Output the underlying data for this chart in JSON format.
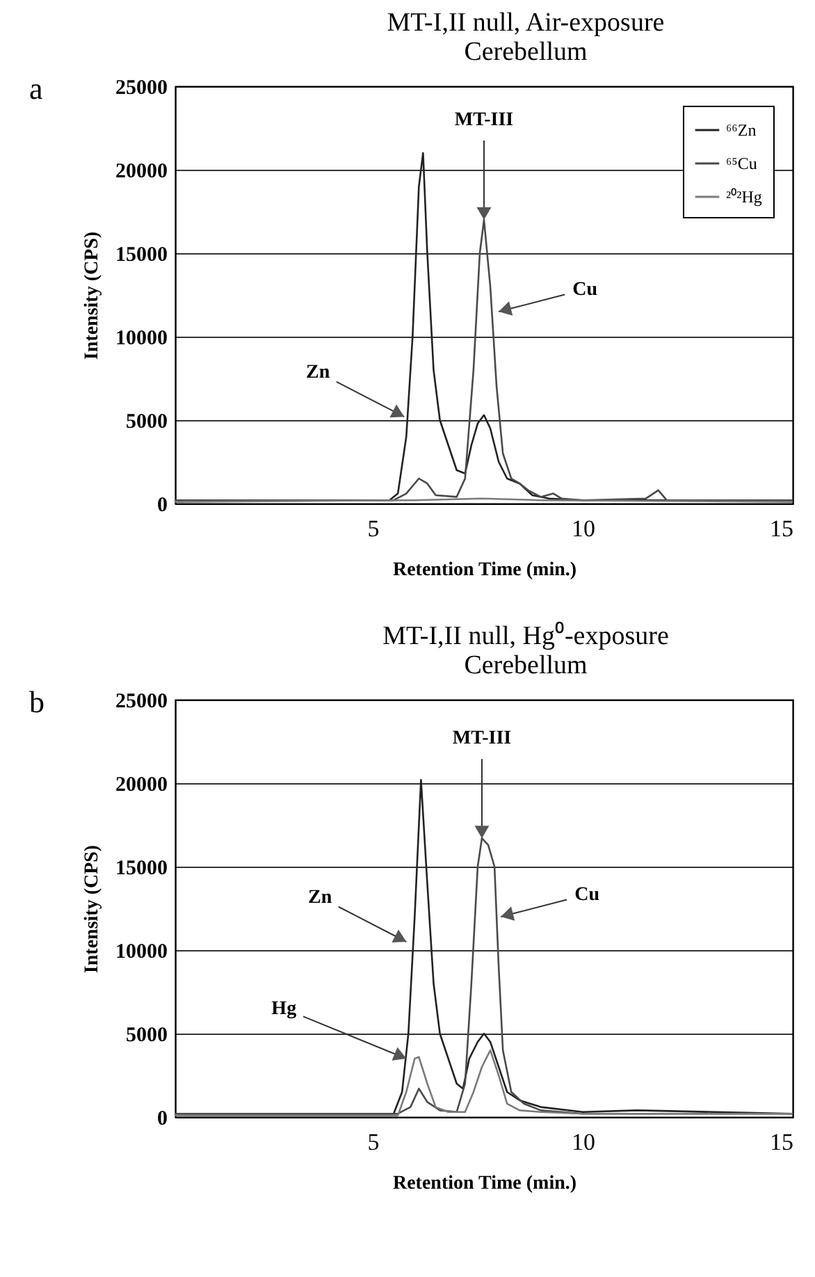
{
  "chart_data": [
    {
      "type": "line",
      "title": "MT-I,II null, Air-exposure",
      "subtitle": "Cerebellum",
      "xlabel": "Retention Time (min.)",
      "ylabel": "Intensity (CPS)",
      "xlim": [
        0.3,
        15
      ],
      "xticks": [
        5,
        10,
        15
      ],
      "ylim": [
        0,
        25000
      ],
      "yticks": [
        0,
        5000,
        10000,
        15000,
        20000,
        25000
      ],
      "grid": "y",
      "legend": "top right",
      "annotations": [
        "a",
        {
          "text": "MT-III",
          "x": 7.65,
          "y": 17000
        },
        {
          "text": "Zn",
          "x": 5.75,
          "y": 5200
        },
        {
          "text": "Cu",
          "x": 8.0,
          "y": 11500
        }
      ],
      "series": [
        {
          "name": "⁶⁶Zn",
          "color": "#222222",
          "x": [
            0.3,
            5.4,
            5.6,
            5.8,
            5.95,
            6.1,
            6.2,
            6.3,
            6.45,
            6.6,
            6.8,
            7.0,
            7.2,
            7.35,
            7.5,
            7.65,
            7.8,
            8.0,
            8.2,
            8.5,
            8.8,
            9.2,
            10,
            15
          ],
          "values": [
            200,
            200,
            600,
            4000,
            10000,
            19000,
            21000,
            15000,
            8000,
            5000,
            3500,
            2000,
            1800,
            3500,
            4800,
            5300,
            4500,
            2500,
            1500,
            1200,
            500,
            300,
            200,
            200
          ]
        },
        {
          "name": "⁶⁵Cu",
          "color": "#4a4a4a",
          "x": [
            0.3,
            5.5,
            5.8,
            6.1,
            6.3,
            6.5,
            7.0,
            7.2,
            7.4,
            7.55,
            7.65,
            7.8,
            7.95,
            8.1,
            8.3,
            8.5,
            8.7,
            9.0,
            9.3,
            9.5,
            10,
            11.5,
            11.8,
            12.0,
            15
          ],
          "values": [
            200,
            200,
            600,
            1500,
            1200,
            500,
            400,
            1500,
            8000,
            15000,
            17000,
            13000,
            7000,
            3000,
            1500,
            1200,
            800,
            400,
            600,
            300,
            200,
            300,
            800,
            200,
            200
          ]
        },
        {
          "name": "²⁰²Hg",
          "color": "#7a7a7a",
          "x": [
            0.3,
            6.0,
            7.6,
            9.0,
            15
          ],
          "values": [
            100,
            200,
            300,
            200,
            100
          ]
        }
      ]
    },
    {
      "type": "line",
      "title": "MT-I,II null, Hg⁰-exposure",
      "subtitle": "Cerebellum",
      "xlabel": "Retention Time (min.)",
      "ylabel": "Intensity (CPS)",
      "xlim": [
        0.3,
        15
      ],
      "xticks": [
        5,
        10,
        15
      ],
      "ylim": [
        0,
        25000
      ],
      "yticks": [
        0,
        5000,
        10000,
        15000,
        20000,
        25000
      ],
      "grid": "y",
      "legend": "top right",
      "annotations": [
        "b",
        {
          "text": "MT-III",
          "x": 7.6,
          "y": 16700
        },
        {
          "text": "Zn",
          "x": 5.8,
          "y": 10500
        },
        {
          "text": "Cu",
          "x": 8.05,
          "y": 12000
        },
        {
          "text": "Hg",
          "x": 5.8,
          "y": 3500
        }
      ],
      "series": [
        {
          "name": "⁶⁶Zn",
          "color": "#222222",
          "x": [
            0.3,
            5.5,
            5.7,
            5.85,
            6.0,
            6.15,
            6.3,
            6.45,
            6.6,
            6.8,
            7.0,
            7.15,
            7.3,
            7.5,
            7.65,
            7.8,
            8.0,
            8.2,
            8.5,
            9,
            10,
            11.3,
            15
          ],
          "values": [
            200,
            200,
            1500,
            5000,
            12000,
            20200,
            14000,
            8000,
            5000,
            3500,
            2000,
            1700,
            3500,
            4500,
            5000,
            4500,
            3000,
            1500,
            1000,
            600,
            300,
            400,
            200
          ]
        },
        {
          "name": "⁶⁵Cu",
          "color": "#4a4a4a",
          "x": [
            0.3,
            5.6,
            5.9,
            6.1,
            6.3,
            6.6,
            7.0,
            7.2,
            7.35,
            7.5,
            7.6,
            7.75,
            7.9,
            8.0,
            8.1,
            8.3,
            8.6,
            9,
            10,
            15
          ],
          "values": [
            200,
            200,
            600,
            1700,
            900,
            400,
            300,
            2000,
            8000,
            15000,
            16700,
            16300,
            15000,
            9000,
            4000,
            1500,
            800,
            400,
            200,
            200
          ]
        },
        {
          "name": "²⁰²Hg",
          "color": "#7a7a7a",
          "x": [
            0.3,
            5.6,
            5.8,
            6.0,
            6.1,
            6.3,
            6.5,
            6.8,
            7.2,
            7.4,
            7.6,
            7.8,
            8.0,
            8.2,
            8.5,
            9,
            10,
            15
          ],
          "values": [
            100,
            100,
            1500,
            3500,
            3600,
            2000,
            600,
            300,
            300,
            1500,
            3000,
            4000,
            2500,
            800,
            400,
            300,
            200,
            200
          ]
        }
      ]
    }
  ]
}
